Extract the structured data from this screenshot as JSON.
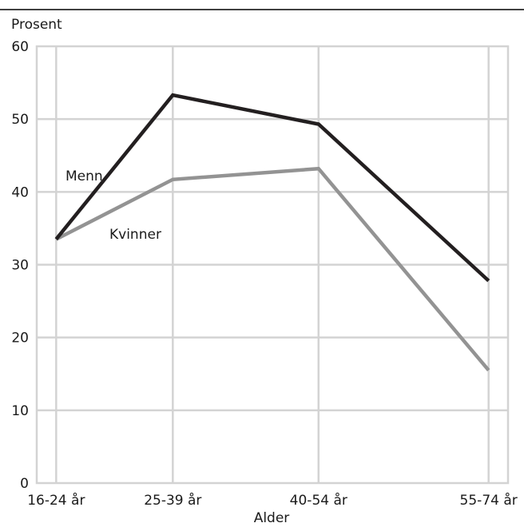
{
  "chart_data": {
    "type": "line",
    "title": "",
    "ylabel": "Prosent",
    "xlabel": "Alder",
    "categories": [
      "16-24 år",
      "25-39 år",
      "40-54 år",
      "55-74 år"
    ],
    "x": [
      20,
      32,
      47,
      64.5
    ],
    "xlim": [
      18,
      66.5
    ],
    "ylim": [
      0,
      60
    ],
    "yticks": [
      0,
      10,
      20,
      30,
      40,
      50,
      60
    ],
    "grid": true,
    "series": [
      {
        "name": "Menn",
        "values": [
          33.5,
          53.3,
          49.3,
          27.8
        ],
        "color": "#231f20"
      },
      {
        "name": "Kvinner",
        "values": [
          33.5,
          41.7,
          43.2,
          15.5
        ],
        "color": "#939393"
      }
    ]
  }
}
